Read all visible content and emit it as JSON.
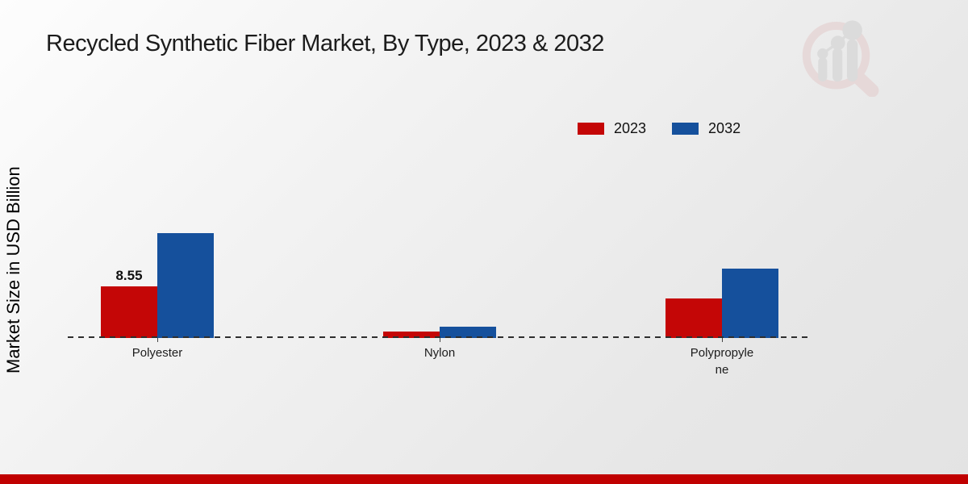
{
  "title": "Recycled Synthetic Fiber Market, By Type, 2023 & 2032",
  "ylabel": "Market Size in USD Billion",
  "logo": {
    "name": "market-research-future-logo"
  },
  "colors": {
    "series_2023": "#c40606",
    "series_2032": "#15509c",
    "footer": "#c00000",
    "baseline_dash": "#2e2e2e",
    "title_text": "#1c1c1c"
  },
  "footer": {
    "color": "#c00000"
  },
  "chart_data": {
    "type": "bar",
    "title": "Recycled Synthetic Fiber Market, By Type, 2023 & 2032",
    "xlabel": "",
    "ylabel": "Market Size in USD Billion",
    "categories": [
      "Polyester",
      "Nylon",
      "Polypropylene"
    ],
    "category_display": [
      [
        "Polyester"
      ],
      [
        "Nylon"
      ],
      [
        "Polypropyle",
        "ne"
      ]
    ],
    "series": [
      {
        "name": "2023",
        "color": "#c40606",
        "values": [
          8.55,
          1.1,
          6.5
        ]
      },
      {
        "name": "2032",
        "color": "#15509c",
        "values": [
          17.4,
          1.9,
          11.5
        ]
      }
    ],
    "point_labels": [
      {
        "series": "2023",
        "category": "Polyester",
        "text": "8.55"
      }
    ],
    "ylim": [
      0,
      18
    ],
    "grid": false,
    "axis_line": "dashed",
    "legend_position": "top-right",
    "unit": "USD Billion"
  }
}
